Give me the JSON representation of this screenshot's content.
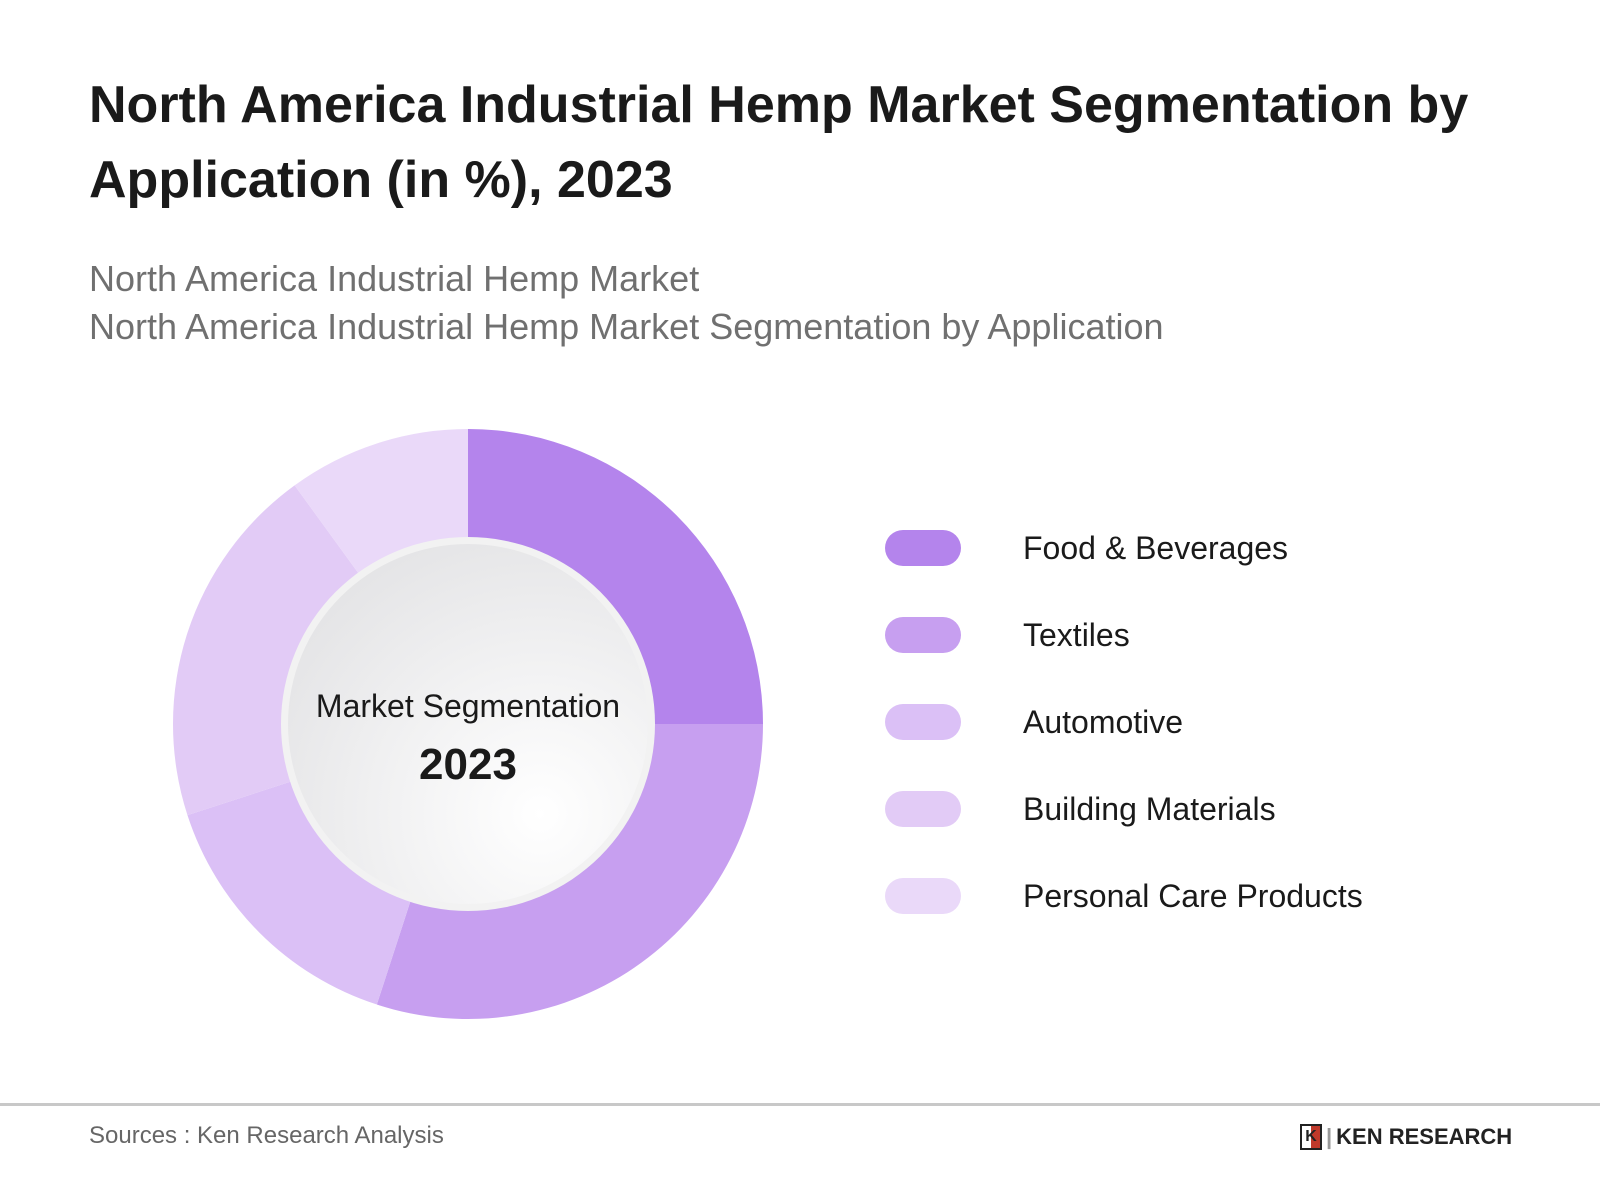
{
  "title": "North America Industrial Hemp Market Segmentation by Application (in %), 2023",
  "subtitle_1": "North America Industrial Hemp Market",
  "subtitle_2": "North America Industrial Hemp Market Segmentation by Application",
  "chart_data": {
    "type": "pie",
    "variant": "donut",
    "center_label": "Market Segmentation",
    "center_year": "2023",
    "categories": [
      "Food & Beverages",
      "Textiles",
      "Automotive",
      "Building Materials",
      "Personal Care Products"
    ],
    "values": [
      25,
      30,
      15,
      20,
      10
    ],
    "colors": [
      "#b484ec",
      "#c79ff0",
      "#dbc0f6",
      "#e2cbf6",
      "#ead9f9"
    ],
    "legend_position": "right"
  },
  "footer": {
    "source": "Sources : Ken Research Analysis",
    "logo_text": "KEN RESEARCH"
  }
}
